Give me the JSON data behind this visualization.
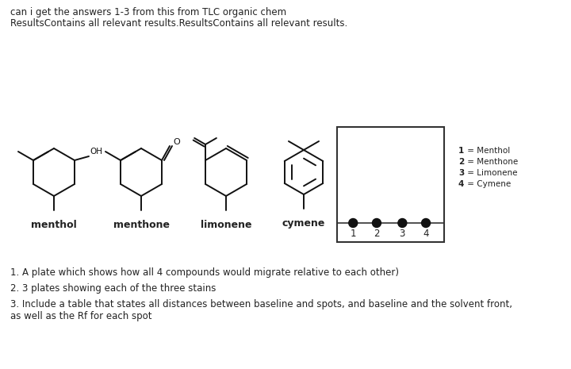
{
  "bg_color": "#ffffff",
  "title_line1": "can i get the answers 1-3 from this from TLC organic chem",
  "title_line2": "ResultsContains all relevant results.ResultsContains all relevant results.",
  "question1": "1. A plate which shows how all 4 compounds would migrate relative to each other)",
  "question2": "2. 3 plates showing each of the three stains",
  "question3": "3. Include a table that states all distances between baseline and spots, and baseline and the solvent front,\nas well as the Rf for each spot",
  "legend": [
    "1 = Menthol",
    "2 = Menthone",
    "3 = Limonene",
    "4 = Cymene"
  ],
  "tlc_labels": [
    "1",
    "2",
    "3",
    "4"
  ],
  "text_color": "#222222",
  "spot_color": "#111111",
  "mol_lw": 1.4
}
